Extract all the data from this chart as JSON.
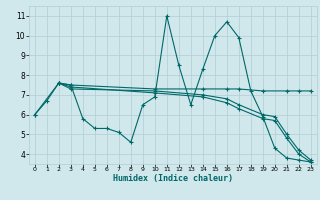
{
  "xlabel": "Humidex (Indice chaleur)",
  "ylabel": "",
  "background_color": "#d0e8ec",
  "grid_color": "#b0cdd4",
  "line_color": "#006868",
  "xlim": [
    -0.5,
    23.5
  ],
  "ylim": [
    3.5,
    11.5
  ],
  "yticks": [
    4,
    5,
    6,
    7,
    8,
    9,
    10,
    11
  ],
  "xticks": [
    0,
    1,
    2,
    3,
    4,
    5,
    6,
    7,
    8,
    9,
    10,
    11,
    12,
    13,
    14,
    15,
    16,
    17,
    18,
    19,
    20,
    21,
    22,
    23
  ],
  "lines": [
    {
      "x": [
        0,
        1,
        2,
        3,
        4,
        5,
        6,
        7,
        8,
        9,
        10,
        11,
        12,
        13,
        14,
        15,
        16,
        17,
        18,
        19,
        20,
        21,
        22,
        23
      ],
      "y": [
        6.0,
        6.7,
        7.6,
        7.5,
        5.8,
        5.3,
        5.3,
        5.1,
        4.6,
        6.5,
        6.9,
        11.0,
        8.5,
        6.5,
        8.3,
        10.0,
        10.7,
        9.9,
        7.2,
        5.9,
        4.3,
        3.8,
        3.7,
        3.6
      ]
    },
    {
      "x": [
        0,
        2,
        3,
        10,
        14,
        16,
        17,
        19,
        21,
        22,
        23
      ],
      "y": [
        6.0,
        7.6,
        7.5,
        7.3,
        7.3,
        7.3,
        7.3,
        7.2,
        7.2,
        7.2,
        7.2
      ]
    },
    {
      "x": [
        2,
        3,
        10,
        14,
        16,
        17,
        19,
        20,
        21,
        22,
        23
      ],
      "y": [
        7.6,
        7.3,
        7.2,
        7.0,
        6.8,
        6.5,
        6.0,
        5.9,
        5.0,
        4.2,
        3.7
      ]
    },
    {
      "x": [
        2,
        3,
        10,
        14,
        16,
        17,
        19,
        20,
        21,
        22,
        23
      ],
      "y": [
        7.6,
        7.4,
        7.1,
        6.9,
        6.6,
        6.3,
        5.8,
        5.7,
        4.8,
        4.0,
        3.6
      ]
    }
  ]
}
